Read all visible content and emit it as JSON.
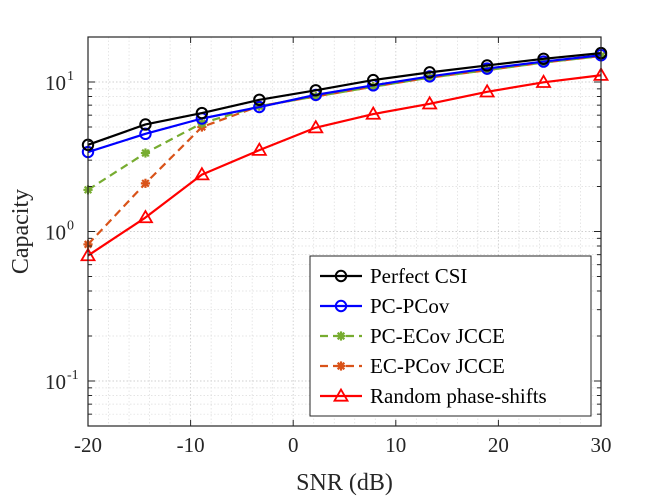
{
  "chart_data": {
    "type": "line",
    "title": "",
    "xlabel": "SNR (dB)",
    "ylabel": "Capacity",
    "xlim": [
      -20,
      30
    ],
    "ylim": [
      0.05,
      20
    ],
    "yscale": "log",
    "grid": true,
    "legend_position": "bottom-right",
    "x_ticks": [
      -20,
      -10,
      0,
      10,
      20,
      30
    ],
    "x_tick_labels": [
      "-20",
      "-10",
      "0",
      "10",
      "20",
      "30"
    ],
    "y_ticks": [
      {
        "value": 0.1,
        "base": "10",
        "exp": "-1"
      },
      {
        "value": 1,
        "base": "10",
        "exp": "0"
      },
      {
        "value": 10,
        "base": "10",
        "exp": "1"
      }
    ],
    "x": [
      -20,
      -14.4,
      -8.9,
      -3.3,
      2.2,
      7.8,
      13.3,
      18.9,
      24.4,
      30
    ],
    "series": [
      {
        "name": "Perfect CSI",
        "color": "#000000",
        "dash": "solid",
        "marker": "circle",
        "values": [
          3.8,
          5.2,
          6.2,
          7.6,
          8.8,
          10.3,
          11.6,
          12.9,
          14.3,
          15.6
        ]
      },
      {
        "name": "PC-PCov",
        "color": "#0000ff",
        "dash": "solid",
        "marker": "circle",
        "values": [
          3.4,
          4.5,
          5.7,
          6.8,
          8.2,
          9.5,
          10.9,
          12.3,
          13.7,
          15.1
        ]
      },
      {
        "name": "PC-ECov JCCE",
        "color": "#77ac30",
        "dash": "dashed",
        "marker": "asterisk",
        "values": [
          1.9,
          3.35,
          5.3,
          6.9,
          8.0,
          9.3,
          10.7,
          12.0,
          13.5,
          14.9
        ]
      },
      {
        "name": "EC-PCov JCCE",
        "color": "#d95319",
        "dash": "dashed",
        "marker": "asterisk",
        "values": [
          0.82,
          2.1,
          5.0,
          6.9,
          8.0,
          9.3,
          10.7,
          12.0,
          13.5,
          14.9
        ]
      },
      {
        "name": "Random phase-shifts",
        "color": "#ff0000",
        "dash": "solid",
        "marker": "triangle",
        "values": [
          0.69,
          1.24,
          2.4,
          3.5,
          4.95,
          6.1,
          7.15,
          8.6,
          9.95,
          11.1
        ]
      }
    ]
  }
}
